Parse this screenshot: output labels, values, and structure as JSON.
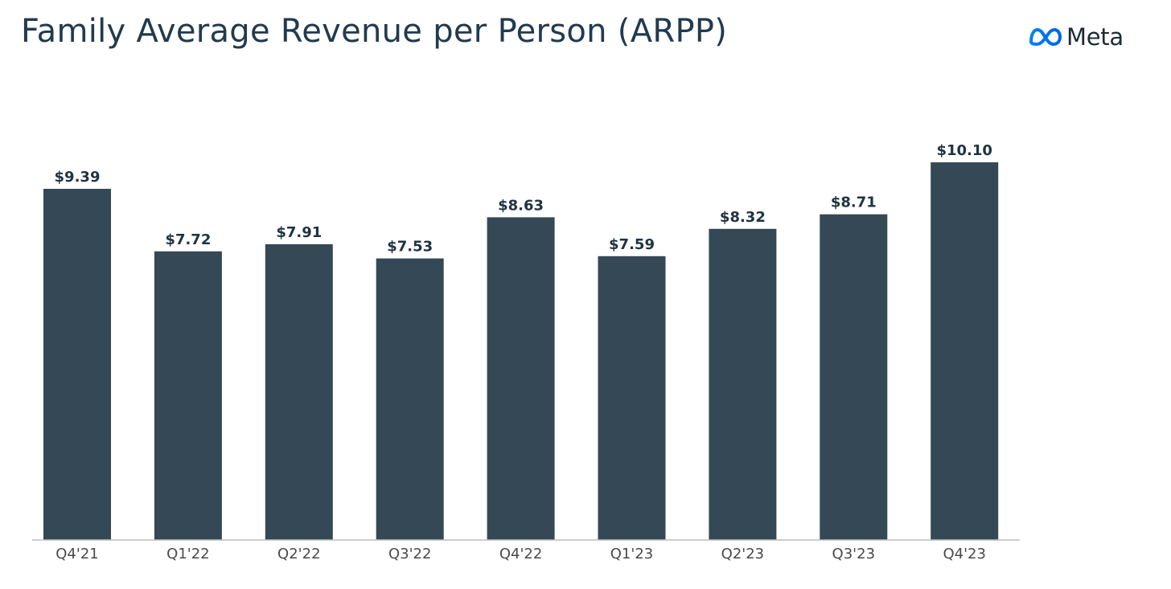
{
  "title": "Family Average Revenue per Person (ARPP)",
  "logo": {
    "text": "Meta",
    "icon": "meta-infinity-icon",
    "accent_start": "#0081FB",
    "accent_end": "#0064E0"
  },
  "colors": {
    "bar": "#344955",
    "label": "#1f3340",
    "axis": "#bdbdbd"
  },
  "chart_data": {
    "type": "bar",
    "title": "Family Average Revenue per Person (ARPP)",
    "categories": [
      "Q4'21",
      "Q1'22",
      "Q2'22",
      "Q3'22",
      "Q4'22",
      "Q1'23",
      "Q2'23",
      "Q3'23",
      "Q4'23"
    ],
    "values": [
      9.39,
      7.72,
      7.91,
      7.53,
      8.63,
      7.59,
      8.32,
      8.71,
      10.1
    ],
    "value_labels": [
      "$9.39",
      "$7.72",
      "$7.91",
      "$7.53",
      "$8.63",
      "$7.59",
      "$8.32",
      "$8.71",
      "$10.10"
    ],
    "xlabel": "",
    "ylabel": "",
    "ylim": [
      0,
      10.1
    ],
    "grid": false,
    "legend": "none"
  }
}
